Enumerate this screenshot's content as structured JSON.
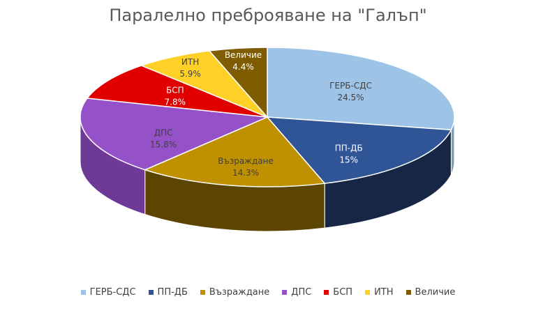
{
  "chart_data": {
    "type": "pie",
    "title": "Паралелно преброяване на \"Галъп\"",
    "style": "3d",
    "legend_position": "bottom",
    "series": [
      {
        "name": "ГЕРБ-СДС",
        "value": 24.5,
        "label": "24.5%",
        "color": "#9DC3E6",
        "side_color": "#7A9CBB"
      },
      {
        "name": "ПП-ДБ",
        "value": 15.0,
        "label": "15%",
        "color": "#2F5597",
        "side_color": "#172645"
      },
      {
        "name": "Възраждане",
        "value": 14.3,
        "label": "14.3%",
        "color": "#BF9000",
        "side_color": "#5C4500"
      },
      {
        "name": "ДПС",
        "value": 15.8,
        "label": "15.8%",
        "color": "#9451C8",
        "side_color": "#6E3A98"
      },
      {
        "name": "БСП",
        "value": 7.8,
        "label": "7.8%",
        "color": "#E00000",
        "side_color": "#9E0000"
      },
      {
        "name": "ИТН",
        "value": 5.9,
        "label": "5.9%",
        "color": "#FFD028",
        "side_color": "#B8951A"
      },
      {
        "name": "Величие",
        "value": 4.4,
        "label": "4.4%",
        "color": "#7F5C00",
        "side_color": "#4A3600"
      }
    ]
  }
}
